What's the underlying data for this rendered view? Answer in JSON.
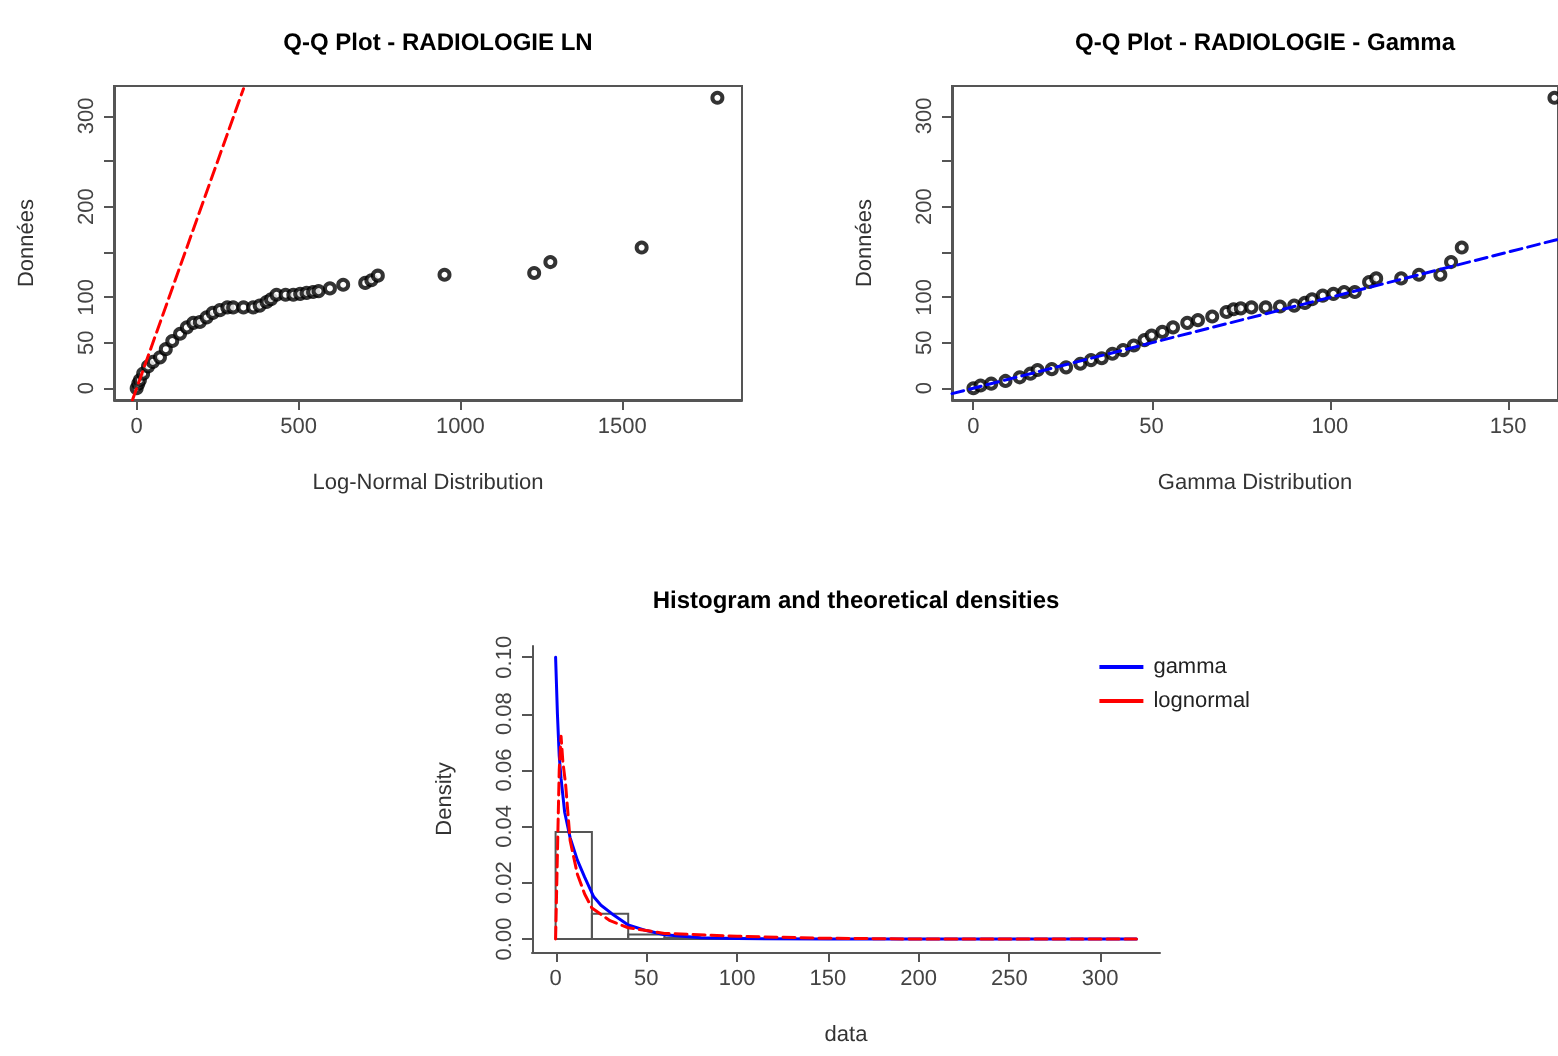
{
  "chart_data": [
    {
      "type": "scatter",
      "title": "Q-Q Plot - RADIOLOGIE LN",
      "xlabel": "Log-Normal Distribution",
      "ylabel": "Données",
      "xlim": [
        -70,
        1870
      ],
      "ylim": [
        -13,
        333
      ],
      "xticks": [
        0,
        500,
        1000,
        1500
      ],
      "yticks": [
        0,
        50,
        100,
        {
          "value": 150,
          "label": null
        },
        200,
        {
          "value": 250,
          "label": null
        },
        300
      ],
      "grid": false,
      "series": [
        {
          "type": "scatter",
          "marker": "circle",
          "color": "#000000",
          "x": [
            0,
            5,
            10,
            20,
            35,
            50,
            72,
            90,
            110,
            134,
            155,
            175,
            195,
            216,
            235,
            257,
            280,
            298,
            330,
            360,
            380,
            401,
            415,
            432,
            460,
            484,
            505,
            525,
            545,
            562,
            597,
            638,
            706,
            725,
            745,
            951,
            1228,
            1278,
            1560,
            1794
          ],
          "values": [
            0,
            5,
            9,
            16,
            24,
            29,
            34,
            43,
            52,
            60,
            67,
            72,
            73,
            78,
            83,
            86,
            89,
            89,
            89,
            89,
            91,
            95,
            98,
            103,
            103,
            103,
            104,
            105,
            106,
            107,
            110,
            114,
            116,
            119,
            124,
            125,
            127,
            139,
            155,
            320
          ]
        },
        {
          "type": "line",
          "marker": "none",
          "color": "#ff0000",
          "line_style": "dashed",
          "x": [
            -13,
            330
          ],
          "values": [
            -13,
            330
          ]
        }
      ]
    },
    {
      "type": "scatter",
      "title": "Q-Q Plot - RADIOLOGIE - Gamma",
      "xlabel": "Gamma Distribution",
      "ylabel": "Données",
      "xlim": [
        -6,
        164
      ],
      "ylim": [
        -13,
        333
      ],
      "xticks": [
        0,
        50,
        100,
        150
      ],
      "yticks": [
        0,
        50,
        100,
        {
          "value": 150,
          "label": null
        },
        200,
        {
          "value": 250,
          "label": null
        },
        300
      ],
      "grid": false,
      "series": [
        {
          "type": "scatter",
          "marker": "circle",
          "color": "#000000",
          "x": [
            0,
            2,
            5,
            9,
            13,
            16,
            18,
            22,
            26,
            30,
            33,
            36,
            39,
            42,
            45,
            48,
            50,
            53,
            56,
            60,
            63,
            67,
            71,
            73,
            75,
            78,
            82,
            86,
            90,
            93,
            95,
            98,
            101,
            104,
            107,
            111,
            113,
            120,
            125,
            131,
            134,
            137,
            163
          ],
          "values": [
            0,
            3,
            5,
            8,
            12,
            16,
            20,
            21,
            23,
            27,
            31,
            33,
            38,
            42,
            47,
            53,
            58,
            62,
            67,
            72,
            75,
            79,
            84,
            87,
            88,
            89,
            89,
            90,
            91,
            94,
            98,
            102,
            104,
            106,
            106,
            117,
            121,
            121,
            125,
            125,
            139,
            155,
            320
          ]
        },
        {
          "type": "line",
          "marker": "none",
          "color": "#0000ff",
          "line_style": "dashed",
          "x": [
            -6,
            164
          ],
          "values": [
            -6,
            164
          ]
        }
      ]
    },
    {
      "type": "histogram",
      "title": "Histogram and theoretical densities",
      "xlabel": "data",
      "ylabel": "Density",
      "xlim": [
        -13,
        333
      ],
      "ylim": [
        -0.0046,
        0.104
      ],
      "xticks": [
        0,
        50,
        100,
        150,
        200,
        250,
        300
      ],
      "yticks": [
        {
          "value": 0,
          "label": "0.00"
        },
        {
          "value": 0.02,
          "label": "0.02"
        },
        {
          "value": 0.04,
          "label": "0.04"
        },
        {
          "value": 0.06,
          "label": "0.06"
        },
        {
          "value": 0.08,
          "label": "0.08"
        },
        {
          "value": 0.1,
          "label": "0.10"
        }
      ],
      "grid": false,
      "legend": "top right",
      "color": "#555555",
      "bins": [
        0,
        20,
        40,
        60,
        80,
        100,
        120,
        140,
        160,
        180,
        200,
        220,
        240,
        260,
        280,
        300,
        320
      ],
      "values": [
        0.038,
        0.009,
        0.0016,
        0.0005,
        0.0003,
        null,
        null,
        null,
        0,
        0,
        0,
        0,
        0,
        0,
        0,
        null
      ],
      "series": [
        {
          "name": "gamma",
          "type": "line",
          "color": "#0000ff",
          "line_style": "solid",
          "x": [
            0,
            1,
            2,
            3,
            5,
            8,
            12,
            16,
            21,
            25,
            31,
            40,
            50,
            60,
            80,
            100,
            150,
            200,
            320
          ],
          "values": [
            0.1,
            0.08,
            0.065,
            0.057,
            0.045,
            0.036,
            0.028,
            0.022,
            0.015,
            0.012,
            0.009,
            0.005,
            0.003,
            0.0015,
            0.0005,
            0.0002,
            0,
            0,
            0
          ]
        },
        {
          "name": "lognormal",
          "type": "line",
          "color": "#ff0000",
          "line_style": "dashed",
          "x": [
            0,
            1,
            2,
            3,
            4,
            5.5,
            8,
            12,
            16,
            20,
            30,
            40,
            60,
            100,
            145,
            200,
            320
          ],
          "values": [
            0,
            0.03,
            0.06,
            0.072,
            0.063,
            0.055,
            0.035,
            0.023,
            0.016,
            0.011,
            0.0065,
            0.004,
            0.002,
            0.001,
            0.0003,
            0,
            0
          ]
        }
      ]
    }
  ]
}
